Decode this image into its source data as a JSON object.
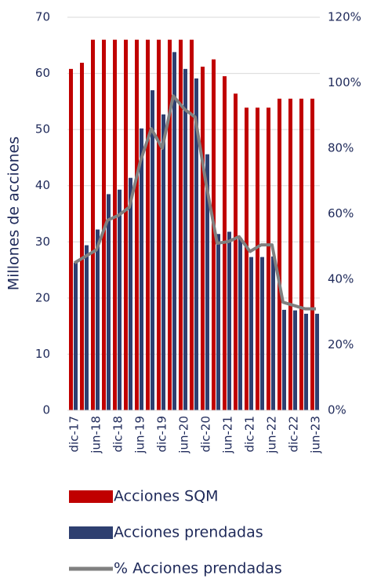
{
  "chart_data": {
    "type": "bar-line",
    "y_label": "Millones de acciones",
    "categories": [
      "dic-17",
      null,
      "jun-18",
      null,
      "dic-18",
      null,
      "jun-19",
      null,
      "dic-19",
      null,
      "jun-20",
      null,
      "dic-20",
      null,
      "jun-21",
      null,
      "dic-21",
      null,
      "jun-22",
      null,
      "dic-22",
      null,
      "jun-23"
    ],
    "series": [
      {
        "name": "Acciones SQM",
        "color": "#c00000",
        "type": "bar",
        "values": [
          60.8,
          61.9,
          66,
          66,
          66,
          66,
          66,
          66,
          66,
          66,
          66,
          66,
          61.2,
          62.5,
          59.5,
          56.4,
          53.9,
          53.9,
          53.9,
          55.5,
          55.5,
          55.5,
          55.5
        ]
      },
      {
        "name": "Acciones prendadas",
        "color": "#2e3f70",
        "type": "bar",
        "values": [
          26.3,
          29.4,
          32.2,
          38.5,
          39.3,
          41.4,
          50.2,
          57.0,
          52.7,
          63.8,
          60.8,
          59.1,
          45.6,
          31.4,
          31.8,
          30.7,
          27.3,
          27.3,
          27.4,
          17.9,
          17.8,
          17.2,
          17.2
        ]
      },
      {
        "name": "% Acciones prendadas",
        "color": "#808080",
        "type": "line",
        "axis": "y2",
        "values": [
          45,
          47,
          49,
          58,
          59.5,
          62,
          76,
          86,
          80,
          96,
          92,
          89.5,
          69,
          51,
          51.5,
          53,
          48.5,
          50.5,
          50.5,
          33,
          32,
          31,
          31
        ]
      }
    ],
    "ylim": [
      0,
      70
    ],
    "yticks": [
      0,
      10,
      20,
      30,
      40,
      50,
      60,
      70
    ],
    "y2lim": [
      0,
      120
    ],
    "y2ticks": [
      {
        "value": 0,
        "label": "0%"
      },
      {
        "value": 20,
        "label": "20%"
      },
      {
        "value": 40,
        "label": "40%"
      },
      {
        "value": 60,
        "label": "60%"
      },
      {
        "value": 80,
        "label": "80%"
      },
      {
        "value": 100,
        "label": "100%"
      },
      {
        "value": 120,
        "label": "120%"
      }
    ],
    "grid": true,
    "legend": "bottom"
  }
}
